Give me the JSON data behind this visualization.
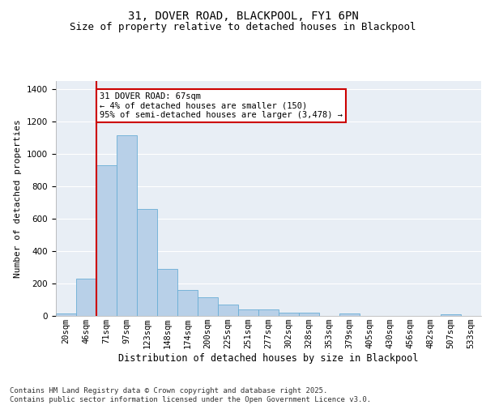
{
  "title": "31, DOVER ROAD, BLACKPOOL, FY1 6PN",
  "subtitle": "Size of property relative to detached houses in Blackpool",
  "xlabel": "Distribution of detached houses by size in Blackpool",
  "ylabel": "Number of detached properties",
  "categories": [
    "20sqm",
    "46sqm",
    "71sqm",
    "97sqm",
    "123sqm",
    "148sqm",
    "174sqm",
    "200sqm",
    "225sqm",
    "251sqm",
    "277sqm",
    "302sqm",
    "328sqm",
    "353sqm",
    "379sqm",
    "405sqm",
    "430sqm",
    "456sqm",
    "482sqm",
    "507sqm",
    "533sqm"
  ],
  "values": [
    15,
    230,
    930,
    1115,
    660,
    290,
    160,
    115,
    70,
    42,
    42,
    22,
    18,
    0,
    15,
    0,
    0,
    0,
    0,
    8,
    0
  ],
  "bar_color": "#b8d0e8",
  "bar_edge_color": "#6aaed6",
  "vline_color": "#cc0000",
  "vline_x": 1.5,
  "annotation_text": "31 DOVER ROAD: 67sqm\n← 4% of detached houses are smaller (150)\n95% of semi-detached houses are larger (3,478) →",
  "annotation_box_color": "#ffffff",
  "annotation_box_edge_color": "#cc0000",
  "ylim": [
    0,
    1450
  ],
  "yticks": [
    0,
    200,
    400,
    600,
    800,
    1000,
    1200,
    1400
  ],
  "background_color": "#e8eef5",
  "footer_text": "Contains HM Land Registry data © Crown copyright and database right 2025.\nContains public sector information licensed under the Open Government Licence v3.0.",
  "title_fontsize": 10,
  "subtitle_fontsize": 9,
  "ylabel_fontsize": 8,
  "xlabel_fontsize": 8.5,
  "tick_fontsize": 7.5,
  "annotation_fontsize": 7.5,
  "footer_fontsize": 6.5
}
